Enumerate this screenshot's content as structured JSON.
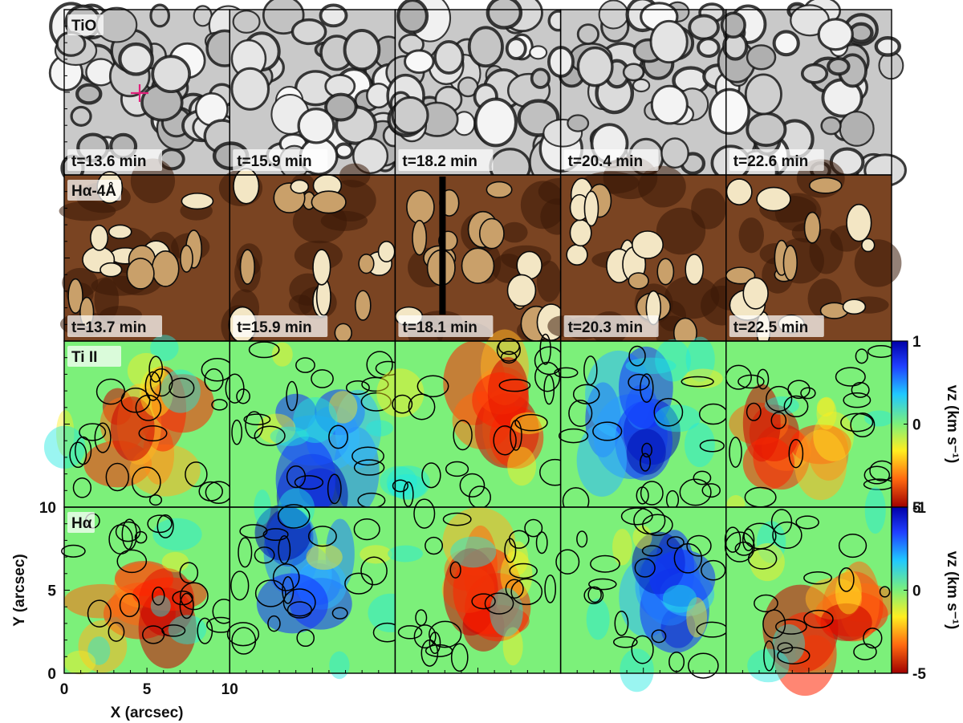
{
  "figure": {
    "row_labels": [
      "TiO",
      "Hα-4Å",
      "Ti II",
      "Hα"
    ],
    "row_times": [
      [
        "t=13.6 min",
        "t=15.9 min",
        "t=18.2 min",
        "t=20.4 min",
        "t=22.6 min"
      ],
      [
        "t=13.7 min",
        "t=15.9 min",
        "t=18.1 min",
        "t=20.3 min",
        "t=22.5 min"
      ]
    ],
    "x_axis": {
      "label": "X (arcsec)",
      "ticks": [
        "0",
        "5",
        "10"
      ],
      "extra_tick": "10"
    },
    "y_axis": {
      "label": "Y (arcsec)",
      "ticks": [
        "0",
        "5",
        "10"
      ]
    },
    "colorbars": [
      {
        "row": "Ti II",
        "label": "vz (km s⁻¹)",
        "ticks": [
          "1",
          "0",
          "-1"
        ],
        "range": [
          -1,
          1
        ],
        "colormap": "jet_reversed"
      },
      {
        "row": "Hα",
        "label": "vz (km s⁻¹)",
        "ticks": [
          "5",
          "0",
          "-5"
        ],
        "range": [
          -5,
          5
        ],
        "colormap": "jet_reversed"
      }
    ],
    "marker": {
      "symbol": "+",
      "color": "#e0207a"
    },
    "colors": {
      "tio": "grayscale",
      "halpha_wing": "sepia",
      "doppler": "jet"
    }
  }
}
